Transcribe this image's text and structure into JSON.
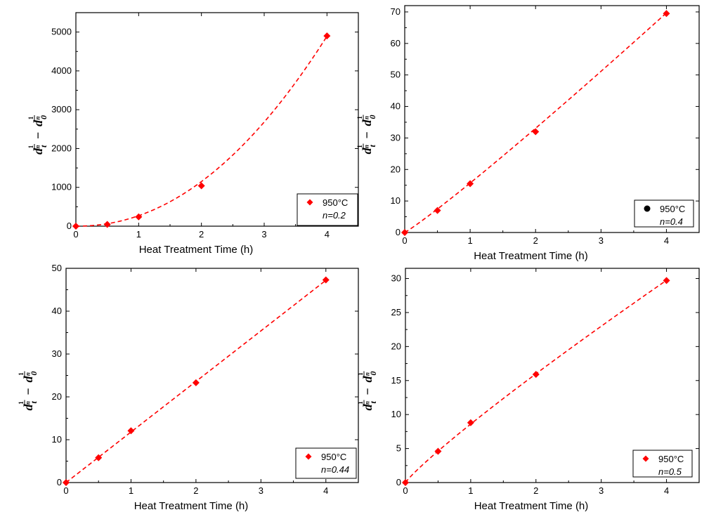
{
  "chart_data": [
    {
      "type": "scatter",
      "xlabel": "Heat Treatment Time (h)",
      "ylabel": "d_t^(1/n) − d_0^(1/n)",
      "xlim": [
        0,
        4.5
      ],
      "ylim": [
        0,
        5500
      ],
      "xticks": [
        "0",
        "1",
        "2",
        "3",
        "4"
      ],
      "yticks": [
        "0",
        "1000",
        "2000",
        "3000",
        "4000",
        "5000"
      ],
      "series": [
        {
          "name": "950°C",
          "marker": "diamond",
          "color": "#ff0000",
          "x": [
            0,
            0.5,
            1,
            2,
            4
          ],
          "y": [
            0,
            45,
            240,
            1040,
            4900
          ]
        }
      ],
      "fit": {
        "style": "dashed",
        "color": "#ff0000",
        "form": "power",
        "a": 270,
        "b": 2.09
      },
      "legend": {
        "label": "950°C",
        "n_label": "n=0.2",
        "position": "bottom-right"
      }
    },
    {
      "type": "scatter",
      "xlabel": "Heat Treatment Time (h)",
      "ylabel": "d_t^(1/n) − d_0^(1/n)",
      "xlim": [
        0,
        4.5
      ],
      "ylim": [
        0,
        72
      ],
      "xticks": [
        "0",
        "1",
        "2",
        "3",
        "4"
      ],
      "yticks": [
        "0",
        "10",
        "20",
        "30",
        "40",
        "50",
        "60",
        "70"
      ],
      "series": [
        {
          "name": "950°C",
          "marker": "diamond",
          "color": "#ff0000",
          "x": [
            0,
            0.5,
            1,
            2,
            4
          ],
          "y": [
            0,
            7.0,
            15.5,
            32.0,
            69.5
          ]
        }
      ],
      "fit": {
        "style": "dashed",
        "color": "#ff0000",
        "form": "power",
        "a": 15.7,
        "b": 1.075
      },
      "legend": {
        "label": "950°C",
        "n_label": "n=0.4",
        "position": "bottom-right",
        "marker": "circle",
        "marker_color": "#000000"
      }
    },
    {
      "type": "scatter",
      "xlabel": "Heat Treatment Time (h)",
      "ylabel": "d_t^(1/n) − d_0^(1/n)",
      "xlim": [
        0,
        4.5
      ],
      "ylim": [
        0,
        50
      ],
      "xticks": [
        "0",
        "1",
        "2",
        "3",
        "4"
      ],
      "yticks": [
        "0",
        "10",
        "20",
        "30",
        "40",
        "50"
      ],
      "series": [
        {
          "name": "950°C",
          "marker": "diamond",
          "color": "#ff0000",
          "x": [
            0,
            0.5,
            1,
            2,
            4
          ],
          "y": [
            0,
            5.8,
            12.1,
            23.3,
            47.3
          ]
        }
      ],
      "fit": {
        "style": "dashed",
        "color": "#ff0000",
        "form": "power",
        "a": 11.8,
        "b": 1.0
      },
      "legend": {
        "label": "950°C",
        "n_label": "n=0.44",
        "position": "bottom-right"
      }
    },
    {
      "type": "scatter",
      "xlabel": "Heat Treatment Time (h)",
      "ylabel": "d_t^(1/n) − d_0^(1/n)",
      "xlim": [
        0,
        4.5
      ],
      "ylim": [
        0,
        31.5
      ],
      "xticks": [
        "0",
        "1",
        "2",
        "3",
        "4"
      ],
      "yticks": [
        "0",
        "5",
        "10",
        "15",
        "20",
        "25",
        "30"
      ],
      "series": [
        {
          "name": "950°C",
          "marker": "diamond",
          "color": "#ff0000",
          "x": [
            0,
            0.5,
            1,
            2,
            4
          ],
          "y": [
            0,
            4.6,
            8.8,
            15.9,
            29.7
          ]
        }
      ],
      "fit": {
        "style": "dashed",
        "color": "#ff0000",
        "form": "power",
        "a": 8.6,
        "b": 0.895
      },
      "legend": {
        "label": "950°C",
        "n_label": "n=0.5",
        "position": "bottom-right"
      }
    }
  ]
}
